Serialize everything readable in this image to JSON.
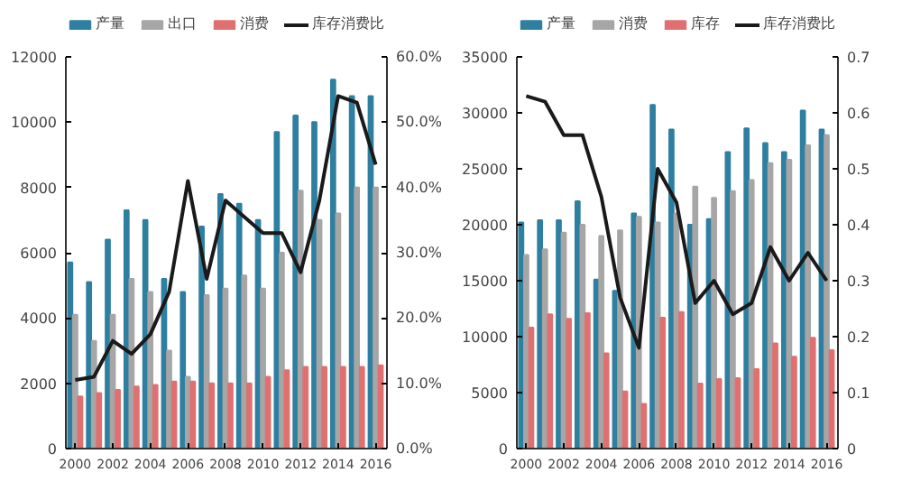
{
  "chart_data": [
    {
      "type": "bar",
      "x": [
        2000,
        2001,
        2002,
        2003,
        2004,
        2005,
        2006,
        2007,
        2008,
        2009,
        2010,
        2011,
        2012,
        2013,
        2014,
        2015,
        2016
      ],
      "xlim": [
        1999.5,
        2016.6
      ],
      "xticks": [
        2000,
        2002,
        2004,
        2006,
        2008,
        2010,
        2012,
        2014,
        2016
      ],
      "ylim": [
        0,
        12000
      ],
      "yticks": [
        0,
        2000,
        4000,
        6000,
        8000,
        10000,
        12000
      ],
      "y2lim": [
        0,
        0.6
      ],
      "y2ticks": [
        {
          "value": 0,
          "label": "0.0%"
        },
        {
          "value": 0.1,
          "label": "10.0%"
        },
        {
          "value": 0.2,
          "label": "20.0%"
        },
        {
          "value": 0.3,
          "label": "30.0%"
        },
        {
          "value": 0.4,
          "label": "40.0%"
        },
        {
          "value": 0.5,
          "label": "50.0%"
        },
        {
          "value": 0.6,
          "label": "60.0%"
        }
      ],
      "legend": "top",
      "grid": false,
      "series": [
        {
          "name": "产量",
          "color": "#2e7fa0",
          "values": [
            5700,
            5100,
            6400,
            7300,
            7000,
            5200,
            4800,
            6800,
            7800,
            7500,
            7000,
            9700,
            10200,
            10000,
            11300,
            10800,
            10800
          ]
        },
        {
          "name": "出口",
          "color": "#a6a6a6",
          "values": [
            4100,
            3300,
            4100,
            5200,
            4800,
            3000,
            2200,
            4700,
            4900,
            5300,
            4900,
            6000,
            7900,
            7000,
            7200,
            8000,
            8000
          ]
        },
        {
          "name": "消费",
          "color": "#e07070",
          "values": [
            1600,
            1700,
            1800,
            1900,
            1950,
            2050,
            2050,
            2000,
            2000,
            2000,
            2200,
            2400,
            2500,
            2500,
            2500,
            2500,
            2550
          ]
        },
        {
          "name": "库存消费比",
          "color": "#1a1a1a",
          "type": "line",
          "axis": "y2",
          "values": [
            0.105,
            0.11,
            0.165,
            0.145,
            0.175,
            0.24,
            0.41,
            0.26,
            0.38,
            0.355,
            0.33,
            0.33,
            0.27,
            0.38,
            0.54,
            0.53,
            0.435
          ]
        }
      ]
    },
    {
      "type": "bar",
      "x": [
        2000,
        2001,
        2002,
        2003,
        2004,
        2005,
        2006,
        2007,
        2008,
        2009,
        2010,
        2011,
        2012,
        2013,
        2014,
        2015,
        2016
      ],
      "xlim": [
        1999.5,
        2016.6
      ],
      "xticks": [
        2000,
        2002,
        2004,
        2006,
        2008,
        2010,
        2012,
        2014,
        2016
      ],
      "ylim": [
        0,
        35000
      ],
      "yticks": [
        0,
        5000,
        10000,
        15000,
        20000,
        25000,
        30000,
        35000
      ],
      "y2lim": [
        0,
        0.7
      ],
      "y2ticks": [
        0,
        0.1,
        0.2,
        0.3,
        0.4,
        0.5,
        0.6,
        0.7
      ],
      "legend": "top",
      "grid": false,
      "series": [
        {
          "name": "产量",
          "color": "#2e7fa0",
          "values": [
            20200,
            20400,
            20400,
            22100,
            15100,
            14100,
            21000,
            30700,
            28500,
            20000,
            20500,
            26500,
            28600,
            27300,
            26500,
            30200,
            28500
          ]
        },
        {
          "name": "消费",
          "color": "#a6a6a6",
          "values": [
            17300,
            17800,
            19300,
            20000,
            19000,
            19500,
            20700,
            20200,
            21000,
            23400,
            22400,
            23000,
            24000,
            25500,
            25800,
            27100,
            28000
          ]
        },
        {
          "name": "库存",
          "color": "#e07070",
          "values": [
            10800,
            12000,
            11600,
            12100,
            8500,
            5100,
            4000,
            11700,
            12200,
            5800,
            6200,
            6300,
            7100,
            9400,
            8200,
            9900,
            8800
          ]
        },
        {
          "name": "库存消费比",
          "color": "#1a1a1a",
          "type": "line",
          "axis": "y2",
          "values": [
            0.63,
            0.62,
            0.56,
            0.56,
            0.45,
            0.27,
            0.18,
            0.5,
            0.44,
            0.26,
            0.3,
            0.24,
            0.26,
            0.36,
            0.3,
            0.35,
            0.3
          ]
        }
      ]
    }
  ]
}
